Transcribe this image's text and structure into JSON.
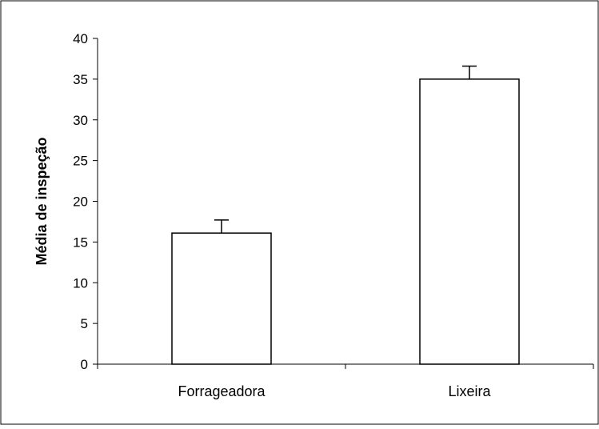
{
  "chart_data": {
    "type": "bar",
    "title": "",
    "xlabel": "",
    "ylabel": "Média de inspeção",
    "categories": [
      "Forrageadora",
      "Lixeira"
    ],
    "values": [
      16.1,
      35.0
    ],
    "error_bars": [
      1.6,
      1.6
    ],
    "ylim": [
      0,
      40
    ],
    "yticks": [
      0,
      5,
      10,
      15,
      20,
      25,
      30,
      35,
      40
    ],
    "grid": false,
    "legend": "none",
    "colors": {
      "bar_fill": "#ffffff",
      "bar_stroke": "#000000",
      "axis": "#000000"
    }
  }
}
